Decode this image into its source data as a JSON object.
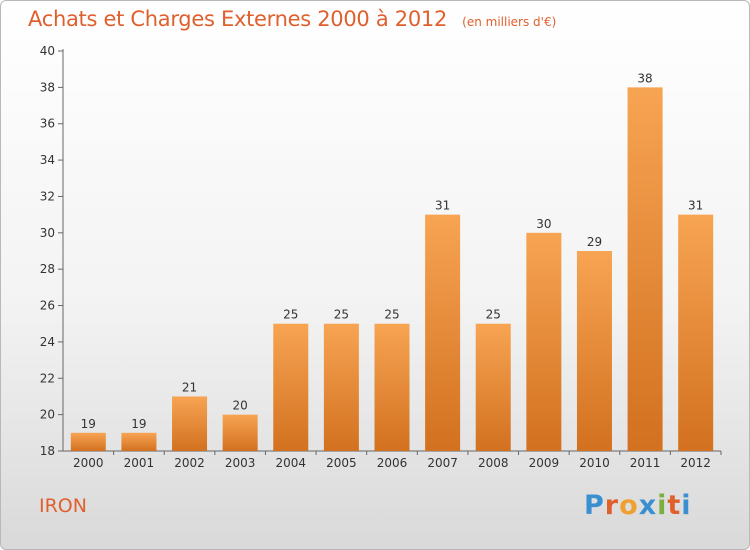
{
  "title": "Achats et Charges Externes 2000 à 2012",
  "subtitle": "(en milliers d'€)",
  "place_name": "IRON",
  "logo": {
    "text": "Proxiti",
    "letters": [
      "P",
      "r",
      "o",
      "x",
      "i",
      "t",
      "i"
    ],
    "colors": [
      "#3a8fd1",
      "#e0602d",
      "#f0a030",
      "#3a8fd1",
      "#7ab040",
      "#e0602d",
      "#3a8fd1"
    ]
  },
  "colors": {
    "bar_top": "#f7a453",
    "bar_bottom": "#d2711f",
    "title": "#e0602d"
  },
  "chart_data": {
    "type": "bar",
    "categories": [
      "2000",
      "2001",
      "2002",
      "2003",
      "2004",
      "2005",
      "2006",
      "2007",
      "2008",
      "2009",
      "2010",
      "2011",
      "2012"
    ],
    "values": [
      19,
      19,
      21,
      20,
      25,
      25,
      25,
      31,
      25,
      30,
      29,
      38,
      31
    ],
    "ylim": [
      18,
      40
    ],
    "yticks": [
      18,
      20,
      22,
      24,
      26,
      28,
      30,
      32,
      34,
      36,
      38,
      40
    ],
    "xlabel": "",
    "ylabel": "",
    "grid": false,
    "data_labels": true
  }
}
